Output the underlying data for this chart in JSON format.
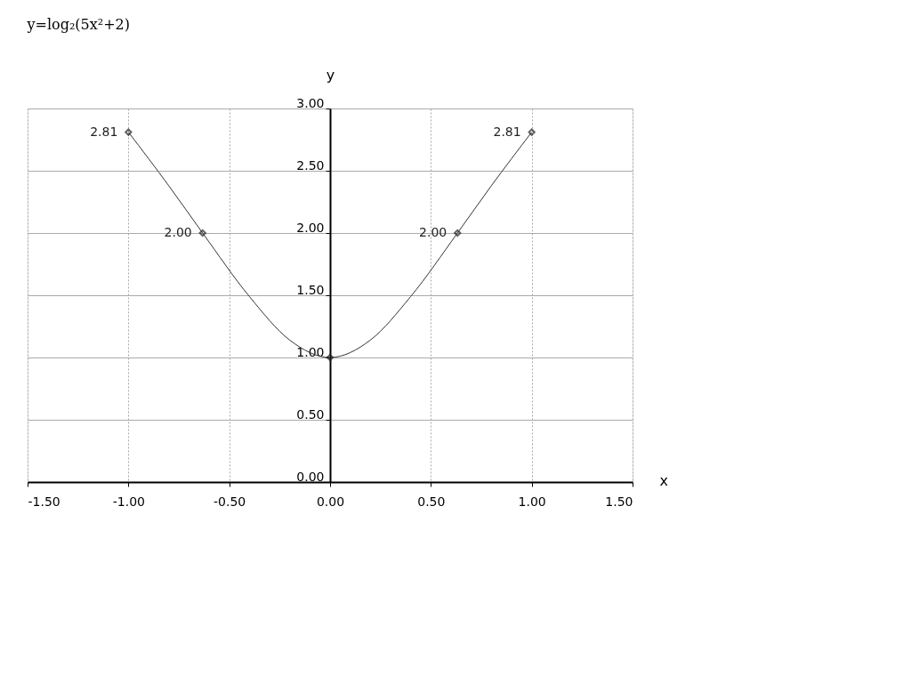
{
  "chart_data": {
    "type": "line",
    "title": "y=log₂(5x²+2)",
    "xlabel": "x",
    "ylabel": "y",
    "xlim": [
      -1.5,
      1.5
    ],
    "xticks": [
      {
        "value": -1.5,
        "label": "-1.50"
      },
      {
        "value": -1,
        "label": "-1.00"
      },
      {
        "value": -0.5,
        "label": "-0.50"
      },
      {
        "value": 0,
        "label": "0.00"
      },
      {
        "value": 0.5,
        "label": "0.50"
      },
      {
        "value": 1,
        "label": "1.00"
      },
      {
        "value": 1.5,
        "label": "1.50"
      }
    ],
    "ylim": [
      0,
      3
    ],
    "yticks": [
      {
        "value": 0,
        "label": "0.00"
      },
      {
        "value": 0.5,
        "label": "0.50"
      },
      {
        "value": 1,
        "label": "1.00"
      },
      {
        "value": 1.5,
        "label": "1.50"
      },
      {
        "value": 2,
        "label": "2.00"
      },
      {
        "value": 2.5,
        "label": "2.50"
      },
      {
        "value": 3,
        "label": "3.00"
      }
    ],
    "grid": true,
    "series": [
      {
        "type": "line",
        "color": "#333333",
        "marker": "none",
        "x": [
          -1,
          -0.8,
          -0.632,
          -0.4,
          -0.2,
          0,
          0.2,
          0.4,
          0.632,
          0.8,
          1
        ],
        "values": [
          2.81,
          2.38,
          2.0,
          1.49,
          1.14,
          1.0,
          1.14,
          1.49,
          2.0,
          2.38,
          2.81
        ]
      },
      {
        "type": "scatter",
        "color": "#222222",
        "marker": "diamond",
        "x": [
          -1,
          -0.632,
          0,
          0.632,
          1
        ],
        "values": [
          2.81,
          2.0,
          1.0,
          2.0,
          2.81
        ],
        "value_labels": [
          "2.81",
          "2.00",
          null,
          "2.00",
          "2.81"
        ]
      }
    ]
  }
}
